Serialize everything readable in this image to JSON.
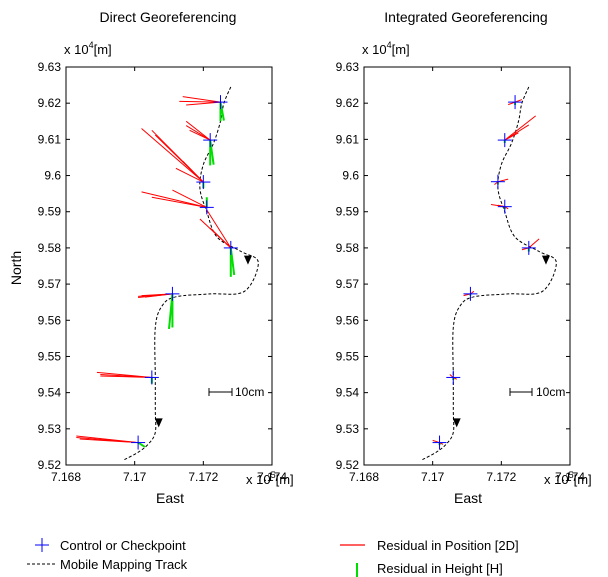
{
  "figure": {
    "legend": {
      "control": "Control or Checkpoint",
      "track": "Mobile Mapping Track",
      "pos": "Residual in Position [2D]",
      "height": "Residual in Height [H]"
    },
    "colors": {
      "control": "#0000ff",
      "pos": "#ff0000",
      "height": "#00dd00",
      "track": "#000000"
    }
  },
  "chart_data": [
    {
      "type": "scatter",
      "title": "Direct Georeferencing",
      "xlabel": "East",
      "ylabel": "North",
      "x_exponent_label": "x 10",
      "x_exponent_power": "5",
      "x_unit": "[m]",
      "y_exponent_label": "x 10",
      "y_exponent_power": "4",
      "y_unit": "[m]",
      "xlim": [
        7.168,
        7.174
      ],
      "ylim": [
        9.52,
        9.63
      ],
      "xticks": [
        "7.168",
        "7.17",
        "7.172",
        "7.174"
      ],
      "yticks": [
        "9.52",
        "9.53",
        "9.54",
        "9.55",
        "9.56",
        "9.57",
        "9.58",
        "9.59",
        "9.6",
        "9.61",
        "9.62",
        "9.63"
      ],
      "scale_bar_label": "10cm",
      "track": [
        [
          7.1697,
          9.5215
        ],
        [
          7.1701,
          9.5235
        ],
        [
          7.1704,
          9.5258
        ],
        [
          7.1706,
          9.529
        ],
        [
          7.1706,
          9.535
        ],
        [
          7.1706,
          9.544
        ],
        [
          7.1706,
          9.558
        ],
        [
          7.1708,
          9.564
        ],
        [
          7.1712,
          9.5665
        ],
        [
          7.1722,
          9.5673
        ],
        [
          7.1732,
          9.568
        ],
        [
          7.1736,
          9.576
        ],
        [
          7.1731,
          9.579
        ],
        [
          7.1724,
          9.583
        ],
        [
          7.1721,
          9.59
        ],
        [
          7.1719,
          9.5965
        ],
        [
          7.172,
          9.603
        ],
        [
          7.1723,
          9.609
        ],
        [
          7.1725,
          9.615
        ],
        [
          7.1726,
          9.62
        ],
        [
          7.1728,
          9.6245
        ]
      ],
      "arrows": [
        [
          7.1733,
          9.5765
        ],
        [
          7.1707,
          9.5315
        ]
      ],
      "points": [
        {
          "x": 7.1701,
          "y": 9.5262,
          "residuals": [
            [
              7.1683,
              9.528
            ],
            [
              7.1683,
              9.5276
            ],
            [
              7.1684,
              9.5272
            ]
          ],
          "heights": [
            [
              7.1703,
              9.525
            ]
          ]
        },
        {
          "x": 7.1705,
          "y": 9.5442,
          "residuals": [
            [
              7.1689,
              9.5456
            ],
            [
              7.169,
              9.545
            ],
            [
              7.169,
              9.5446
            ]
          ],
          "heights": [
            [
              7.1705,
              9.5425
            ]
          ]
        },
        {
          "x": 7.1711,
          "y": 9.5673,
          "residuals": [
            [
              7.1702,
              9.5668
            ],
            [
              7.1701,
              9.5666
            ],
            [
              7.1701,
              9.5663
            ],
            [
              7.1703,
              9.5664
            ]
          ],
          "heights": [
            [
              7.171,
              9.5576
            ],
            [
              7.1711,
              9.558
            ]
          ]
        },
        {
          "x": 7.1728,
          "y": 9.58,
          "residuals": [
            [
              7.1719,
              9.588
            ],
            [
              7.1721,
              9.5905
            ],
            [
              7.1722,
              9.5855
            ]
          ],
          "heights": [
            [
              7.1728,
              9.572
            ],
            [
              7.1729,
              9.5725
            ]
          ]
        },
        {
          "x": 7.1721,
          "y": 9.5912,
          "residuals": [
            [
              7.1705,
              9.594
            ],
            [
              7.1702,
              9.5955
            ],
            [
              7.1711,
              9.596
            ]
          ],
          "heights": [
            [
              7.1721,
              9.594
            ]
          ]
        },
        {
          "x": 7.172,
          "y": 9.5982,
          "residuals": [
            [
              7.1705,
              9.6125
            ],
            [
              7.1702,
              9.613
            ],
            [
              7.1706,
              9.6112
            ],
            [
              7.1709,
              9.6085
            ],
            [
              7.1714,
              9.604
            ],
            [
              7.1712,
              9.602
            ]
          ],
          "heights": [
            [
              7.172,
              9.5965
            ]
          ]
        },
        {
          "x": 7.1722,
          "y": 9.6098,
          "residuals": [
            [
              7.1715,
              9.615
            ],
            [
              7.1715,
              9.6138
            ],
            [
              7.1716,
              9.6125
            ]
          ],
          "heights": [
            [
              7.1722,
              9.6028
            ],
            [
              7.1723,
              9.603
            ]
          ]
        },
        {
          "x": 7.1725,
          "y": 9.6203,
          "residuals": [
            [
              7.1714,
              9.6218
            ],
            [
              7.1713,
              9.6205
            ],
            [
              7.1715,
              9.6195
            ]
          ],
          "heights": [
            [
              7.1725,
              9.615
            ],
            [
              7.1726,
              9.6152
            ]
          ]
        }
      ]
    },
    {
      "type": "scatter",
      "title": "Integrated Georeferencing",
      "xlabel": "East",
      "ylabel": "",
      "x_exponent_label": "x 10",
      "x_exponent_power": "5",
      "x_unit": "[m]",
      "y_exponent_label": "x 10",
      "y_exponent_power": "4",
      "y_unit": "[m]",
      "xlim": [
        7.168,
        7.174
      ],
      "ylim": [
        9.52,
        9.63
      ],
      "xticks": [
        "7.168",
        "7.17",
        "7.172",
        "7.174"
      ],
      "yticks": [
        "9.52",
        "9.53",
        "9.54",
        "9.55",
        "9.56",
        "9.57",
        "9.58",
        "9.59",
        "9.6",
        "9.61",
        "9.62",
        "9.63"
      ],
      "scale_bar_label": "10cm",
      "track": [
        [
          7.1697,
          9.5215
        ],
        [
          7.1701,
          9.5235
        ],
        [
          7.1704,
          9.5258
        ],
        [
          7.1706,
          9.529
        ],
        [
          7.1706,
          9.535
        ],
        [
          7.1706,
          9.544
        ],
        [
          7.1706,
          9.558
        ],
        [
          7.1708,
          9.564
        ],
        [
          7.1712,
          9.5665
        ],
        [
          7.1722,
          9.5673
        ],
        [
          7.1732,
          9.568
        ],
        [
          7.1736,
          9.576
        ],
        [
          7.1731,
          9.579
        ],
        [
          7.1724,
          9.583
        ],
        [
          7.1721,
          9.59
        ],
        [
          7.1719,
          9.5965
        ],
        [
          7.172,
          9.603
        ],
        [
          7.1723,
          9.609
        ],
        [
          7.1725,
          9.615
        ],
        [
          7.1726,
          9.62
        ],
        [
          7.1728,
          9.6245
        ]
      ],
      "arrows": [
        [
          7.1733,
          9.5765
        ],
        [
          7.1707,
          9.5315
        ]
      ],
      "points": [
        {
          "x": 7.1702,
          "y": 9.5262,
          "residuals": [
            [
              7.17,
              9.5268
            ],
            [
              7.1703,
              9.5257
            ]
          ],
          "heights": [
            [
              7.1702,
              9.5255
            ]
          ]
        },
        {
          "x": 7.1706,
          "y": 9.5442,
          "residuals": [
            [
              7.1705,
              9.545
            ],
            [
              7.1707,
              9.5437
            ]
          ],
          "heights": [
            [
              7.1706,
              9.5435
            ]
          ]
        },
        {
          "x": 7.1711,
          "y": 9.5673,
          "residuals": [
            [
              7.1712,
              9.568
            ],
            [
              7.1709,
              9.5668
            ]
          ],
          "heights": [
            [
              7.1711,
              9.5668
            ]
          ]
        },
        {
          "x": 7.1728,
          "y": 9.58,
          "residuals": [
            [
              7.1731,
              9.5825
            ],
            [
              7.1726,
              9.5795
            ]
          ],
          "heights": [
            [
              7.1728,
              9.579
            ]
          ]
        },
        {
          "x": 7.1721,
          "y": 9.5914,
          "residuals": [
            [
              7.1717,
              9.592
            ],
            [
              7.1722,
              9.5908
            ],
            [
              7.1719,
              9.5918
            ]
          ],
          "heights": [
            [
              7.1721,
              9.5907
            ]
          ]
        },
        {
          "x": 7.1719,
          "y": 9.5983,
          "residuals": [
            [
              7.1722,
              9.599
            ],
            [
              7.1718,
              9.5975
            ]
          ],
          "heights": [
            [
              7.1719,
              9.5975
            ]
          ]
        },
        {
          "x": 7.1721,
          "y": 9.6098,
          "residuals": [
            [
              7.173,
              9.6165
            ],
            [
              7.1728,
              9.614
            ],
            [
              7.1725,
              9.6118
            ]
          ],
          "heights": [
            [
              7.1721,
              9.609
            ]
          ]
        },
        {
          "x": 7.1724,
          "y": 9.6203,
          "residuals": [
            [
              7.1726,
              9.621
            ],
            [
              7.1722,
              9.6196
            ]
          ],
          "heights": [
            [
              7.1724,
              9.6195
            ]
          ]
        }
      ]
    }
  ]
}
